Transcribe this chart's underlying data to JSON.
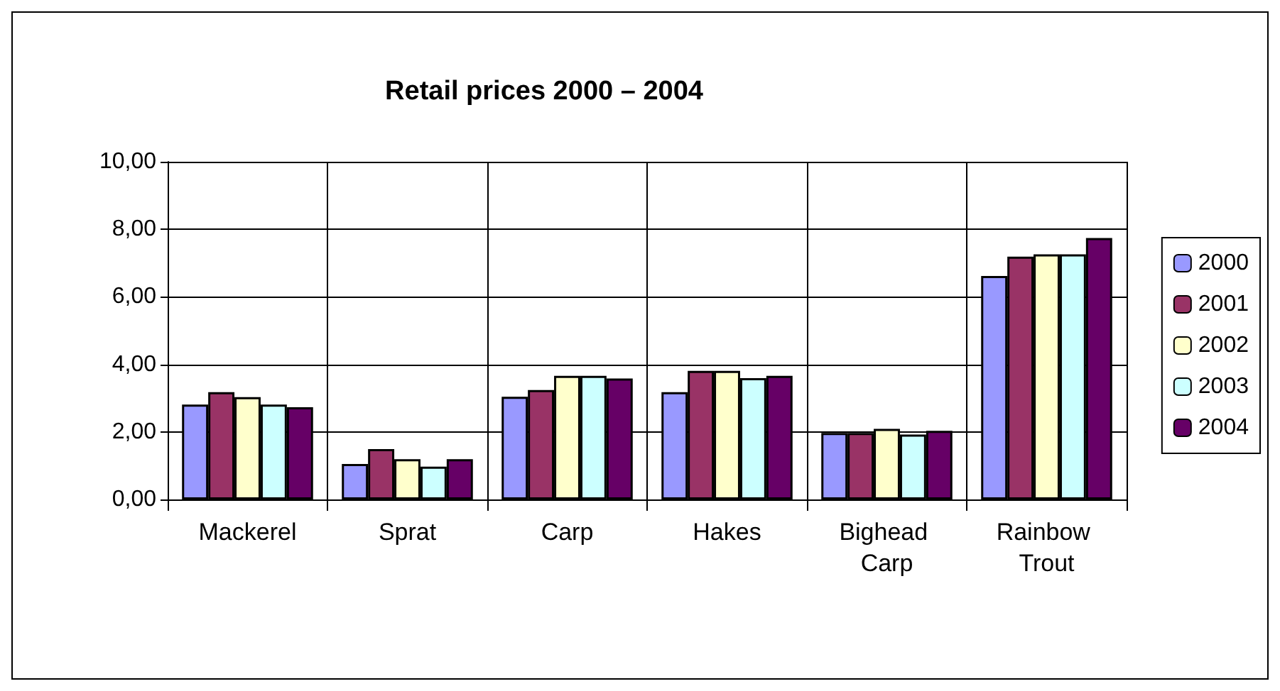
{
  "chart_data": {
    "type": "bar",
    "title": "Retail prices 2000 – 2004",
    "categories": [
      "Mackerel",
      "Sprat",
      "Carp",
      "Hakes",
      "Bighead Carp",
      "Rainbow Trout"
    ],
    "series": [
      {
        "name": "2000",
        "color": "#9999ff",
        "values": [
          2.81,
          1.05,
          3.04,
          3.18,
          1.97,
          6.62
        ]
      },
      {
        "name": "2001",
        "color": "#993366",
        "values": [
          3.18,
          1.49,
          3.24,
          3.81,
          1.97,
          7.19
        ]
      },
      {
        "name": "2002",
        "color": "#ffffcc",
        "values": [
          3.03,
          1.19,
          3.66,
          3.81,
          2.09,
          7.26
        ]
      },
      {
        "name": "2003",
        "color": "#ccffff",
        "values": [
          2.81,
          0.97,
          3.66,
          3.59,
          1.92,
          7.26
        ]
      },
      {
        "name": "2004",
        "color": "#660066",
        "values": [
          2.73,
          1.19,
          3.58,
          3.66,
          2.03,
          7.74
        ]
      }
    ],
    "ylim": [
      0,
      10
    ],
    "yticks": [
      {
        "value": 0,
        "label": "0,00"
      },
      {
        "value": 2,
        "label": "2,00"
      },
      {
        "value": 4,
        "label": "4,00"
      },
      {
        "value": 6,
        "label": "6,00"
      },
      {
        "value": 8,
        "label": "8,00"
      },
      {
        "value": 10,
        "label": "10,00"
      }
    ],
    "grid": true,
    "legend": "right"
  }
}
